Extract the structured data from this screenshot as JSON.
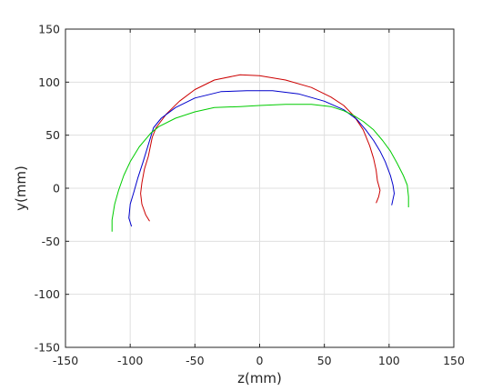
{
  "chart_data": {
    "type": "line",
    "title": "",
    "xlabel": "z(mm)",
    "ylabel": "y(mm)",
    "xlim": [
      -150,
      150
    ],
    "ylim": [
      -150,
      150
    ],
    "xticks": [
      -150,
      -100,
      -50,
      0,
      50,
      100,
      150
    ],
    "yticks": [
      -150,
      -100,
      -50,
      0,
      50,
      100,
      150
    ],
    "xtick_labels": [
      "-150",
      "-100",
      "-50",
      "0",
      "50",
      "100",
      "150"
    ],
    "ytick_labels": [
      "-150",
      "-100",
      "-50",
      "0",
      "50",
      "100",
      "150"
    ],
    "grid": true,
    "legend": "none",
    "series": [
      {
        "color": "#cc0000",
        "points": [
          [
            -85,
            -31
          ],
          [
            -88,
            -25
          ],
          [
            -91,
            -15
          ],
          [
            -92,
            -5
          ],
          [
            -91,
            5
          ],
          [
            -89,
            18
          ],
          [
            -86,
            30
          ],
          [
            -83,
            48
          ],
          [
            -80,
            57
          ],
          [
            -72,
            70
          ],
          [
            -62,
            82
          ],
          [
            -50,
            93
          ],
          [
            -35,
            102
          ],
          [
            -15,
            107
          ],
          [
            0,
            106
          ],
          [
            20,
            102
          ],
          [
            40,
            95
          ],
          [
            55,
            86
          ],
          [
            65,
            78
          ],
          [
            73,
            68
          ],
          [
            80,
            55
          ],
          [
            85,
            40
          ],
          [
            88,
            28
          ],
          [
            90,
            17
          ],
          [
            91,
            7
          ],
          [
            93,
            -2
          ],
          [
            92,
            -8
          ],
          [
            90,
            -14
          ]
        ]
      },
      {
        "color": "#0000cc",
        "points": [
          [
            -99,
            -36
          ],
          [
            -101,
            -28
          ],
          [
            -100,
            -15
          ],
          [
            -97,
            -3
          ],
          [
            -94,
            10
          ],
          [
            -90,
            25
          ],
          [
            -85,
            45
          ],
          [
            -82,
            57
          ],
          [
            -76,
            66
          ],
          [
            -65,
            76
          ],
          [
            -50,
            85
          ],
          [
            -30,
            91
          ],
          [
            -10,
            92
          ],
          [
            10,
            92
          ],
          [
            30,
            89
          ],
          [
            50,
            82
          ],
          [
            65,
            74
          ],
          [
            75,
            65
          ],
          [
            82,
            55
          ],
          [
            88,
            45
          ],
          [
            93,
            35
          ],
          [
            97,
            25
          ],
          [
            101,
            12
          ],
          [
            103,
            3
          ],
          [
            104,
            -5
          ],
          [
            102,
            -16
          ]
        ]
      },
      {
        "color": "#00cc00",
        "points": [
          [
            -114,
            -41
          ],
          [
            -114,
            -30
          ],
          [
            -112,
            -15
          ],
          [
            -109,
            -2
          ],
          [
            -105,
            12
          ],
          [
            -100,
            25
          ],
          [
            -93,
            39
          ],
          [
            -84,
            52
          ],
          [
            -78,
            58
          ],
          [
            -65,
            66
          ],
          [
            -50,
            72
          ],
          [
            -35,
            76
          ],
          [
            -15,
            77
          ],
          [
            0,
            78
          ],
          [
            20,
            79
          ],
          [
            40,
            79
          ],
          [
            55,
            77
          ],
          [
            65,
            73
          ],
          [
            72,
            69
          ],
          [
            80,
            63
          ],
          [
            88,
            55
          ],
          [
            95,
            45
          ],
          [
            101,
            35
          ],
          [
            106,
            24
          ],
          [
            111,
            12
          ],
          [
            114,
            3
          ],
          [
            115,
            -8
          ],
          [
            115,
            -18
          ]
        ]
      }
    ]
  }
}
